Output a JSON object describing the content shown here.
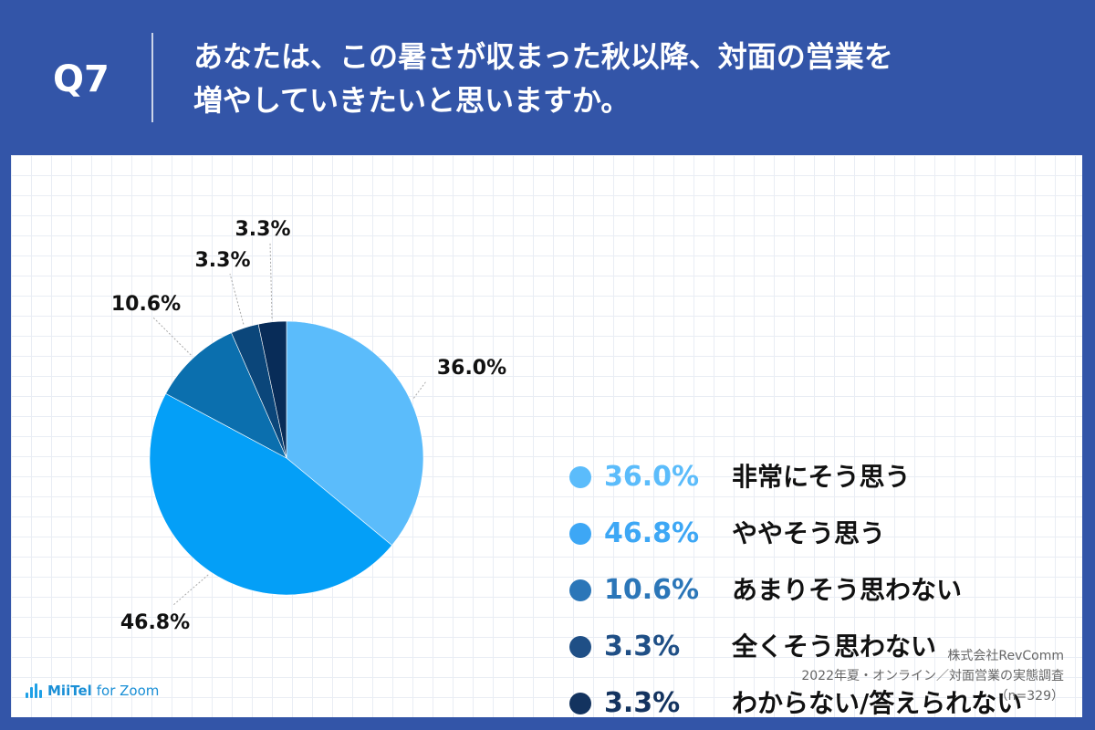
{
  "header": {
    "qnum": "Q7",
    "question_line1": "あなたは、この暑さが収まった秋以降、対面の営業を",
    "question_line2": "増やしていきたいと思いますか。"
  },
  "chart_data": {
    "type": "pie",
    "title": "",
    "slices": [
      {
        "label": "非常にそう思う",
        "value": 36.0,
        "pct_label": "36.0%",
        "color": "#5bbcfb"
      },
      {
        "label": "ややそう思う",
        "value": 46.8,
        "pct_label": "46.8%",
        "color": "#049ff7"
      },
      {
        "label": "あまりそう思わない",
        "value": 10.6,
        "pct_label": "10.6%",
        "color": "#0b6fae"
      },
      {
        "label": "全くそう思わない",
        "value": 3.3,
        "pct_label": "3.3%",
        "color": "#0b467a"
      },
      {
        "label": "わからない/答えられない",
        "value": 3.3,
        "pct_label": "3.3%",
        "color": "#082c58"
      }
    ],
    "legend_placement": "right",
    "start": "12 o'clock, clockwise"
  },
  "legend": [
    {
      "pct": "36.0%",
      "text": "非常にそう思う",
      "dot_color": "#5bbcfb",
      "pct_color": "#5bbcfb"
    },
    {
      "pct": "46.8%",
      "text": "ややそう思う",
      "dot_color": "#3da7f5",
      "pct_color": "#3da7f5"
    },
    {
      "pct": "10.6%",
      "text": "あまりそう思わない",
      "dot_color": "#2b76b8",
      "pct_color": "#2b76b8"
    },
    {
      "pct": "3.3%",
      "text": "全くそう思わない",
      "dot_color": "#1f4f86",
      "pct_color": "#1f4f86"
    },
    {
      "pct": "3.3%",
      "text": "わからない/答えられない",
      "dot_color": "#13335f",
      "pct_color": "#13335f"
    }
  ],
  "footer": {
    "logo_brand": "MiiTel",
    "logo_suffix": "for Zoom",
    "source_line1": "株式会社RevComm",
    "source_line2": "2022年夏・オンライン／対面営業の実態調査",
    "source_line3": "（n=329）"
  },
  "colors": {
    "background": "#3355a8",
    "panel": "#ffffff"
  }
}
